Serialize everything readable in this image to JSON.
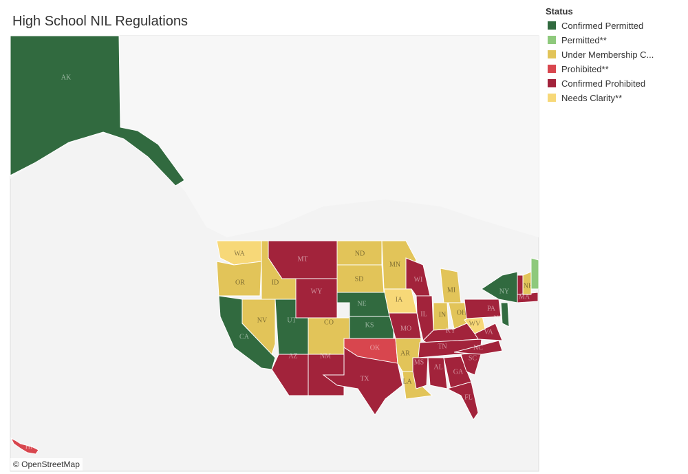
{
  "header": {
    "title": "High School NIL Regulations"
  },
  "legend": {
    "title": "Status",
    "items": [
      {
        "label": "Confirmed Permitted",
        "color": "#316a3f"
      },
      {
        "label": "Permitted**",
        "color": "#8ec97c"
      },
      {
        "label": "Under Membership C...",
        "color": "#e2c459"
      },
      {
        "label": "Prohibited**",
        "color": "#d8464e"
      },
      {
        "label": "Confirmed Prohibited",
        "color": "#a2233b"
      },
      {
        "label": "Needs Clarity**",
        "color": "#f7d878"
      }
    ]
  },
  "states": [
    {
      "label": "AK",
      "status": 0
    },
    {
      "label": "WA",
      "status": 5
    },
    {
      "label": "OR",
      "status": 2
    },
    {
      "label": "CA",
      "status": 0
    },
    {
      "label": "NV",
      "status": 2
    },
    {
      "label": "ID",
      "status": 2
    },
    {
      "label": "MT",
      "status": 4
    },
    {
      "label": "WY",
      "status": 4
    },
    {
      "label": "UT",
      "status": 0
    },
    {
      "label": "CO",
      "status": 2
    },
    {
      "label": "AZ",
      "status": 4
    },
    {
      "label": "NM",
      "status": 4
    },
    {
      "label": "ND",
      "status": 2
    },
    {
      "label": "SD",
      "status": 2
    },
    {
      "label": "NE",
      "status": 0
    },
    {
      "label": "KS",
      "status": 0
    },
    {
      "label": "OK",
      "status": 3
    },
    {
      "label": "TX",
      "status": 4
    },
    {
      "label": "MN",
      "status": 2
    },
    {
      "label": "IA",
      "status": 5
    },
    {
      "label": "MO",
      "status": 4
    },
    {
      "label": "AR",
      "status": 2
    },
    {
      "label": "LA",
      "status": 2
    },
    {
      "label": "WI",
      "status": 4
    },
    {
      "label": "IL",
      "status": 4
    },
    {
      "label": "MI",
      "status": 2
    },
    {
      "label": "IN",
      "status": 2
    },
    {
      "label": "OH",
      "status": 2
    },
    {
      "label": "KY",
      "status": 4
    },
    {
      "label": "TN",
      "status": 4
    },
    {
      "label": "MS",
      "status": 4
    },
    {
      "label": "AL",
      "status": 4
    },
    {
      "label": "GA",
      "status": 4
    },
    {
      "label": "FL",
      "status": 4
    },
    {
      "label": "SC",
      "status": 4
    },
    {
      "label": "NC",
      "status": 4
    },
    {
      "label": "VA",
      "status": 4
    },
    {
      "label": "WV",
      "status": 5
    },
    {
      "label": "PA",
      "status": 4
    },
    {
      "label": "NY",
      "status": 0
    },
    {
      "label": "NJ",
      "status": 0
    },
    {
      "status": 4
    },
    {
      "label": "MA",
      "status": 4
    },
    {
      "label": "NH",
      "status": 2
    },
    {
      "status": 1
    },
    {
      "label": "HI",
      "status": 3
    }
  ],
  "attribution": "© OpenStreetMap"
}
